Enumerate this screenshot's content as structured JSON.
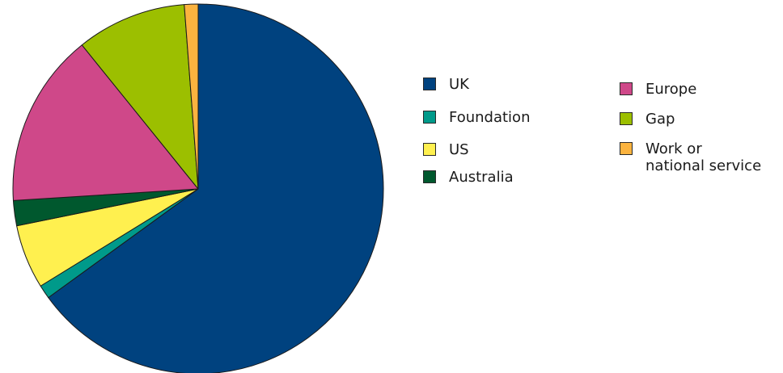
{
  "chart_data": {
    "type": "pie",
    "start_angle_deg": 0,
    "direction": "clockwise",
    "slices": [
      {
        "label": "UK",
        "value": 65.0,
        "color": "#00427f"
      },
      {
        "label": "Foundation",
        "value": 1.2,
        "color": "#009a8a"
      },
      {
        "label": "US",
        "value": 5.6,
        "color": "#fff04f"
      },
      {
        "label": "Australia",
        "value": 2.2,
        "color": "#00582e"
      },
      {
        "label": "Europe",
        "value": 15.2,
        "color": "#cf4889"
      },
      {
        "label": "Gap",
        "value": 9.6,
        "color": "#9cbf00"
      },
      {
        "label": "Work or\nnational service",
        "value": 1.2,
        "color": "#fbb33f"
      }
    ],
    "legend": {
      "placement": "right",
      "columns": [
        [
          "UK",
          "Foundation",
          "US",
          "Australia"
        ],
        [
          "Europe",
          "Gap",
          "Work or\nnational service"
        ]
      ]
    }
  }
}
